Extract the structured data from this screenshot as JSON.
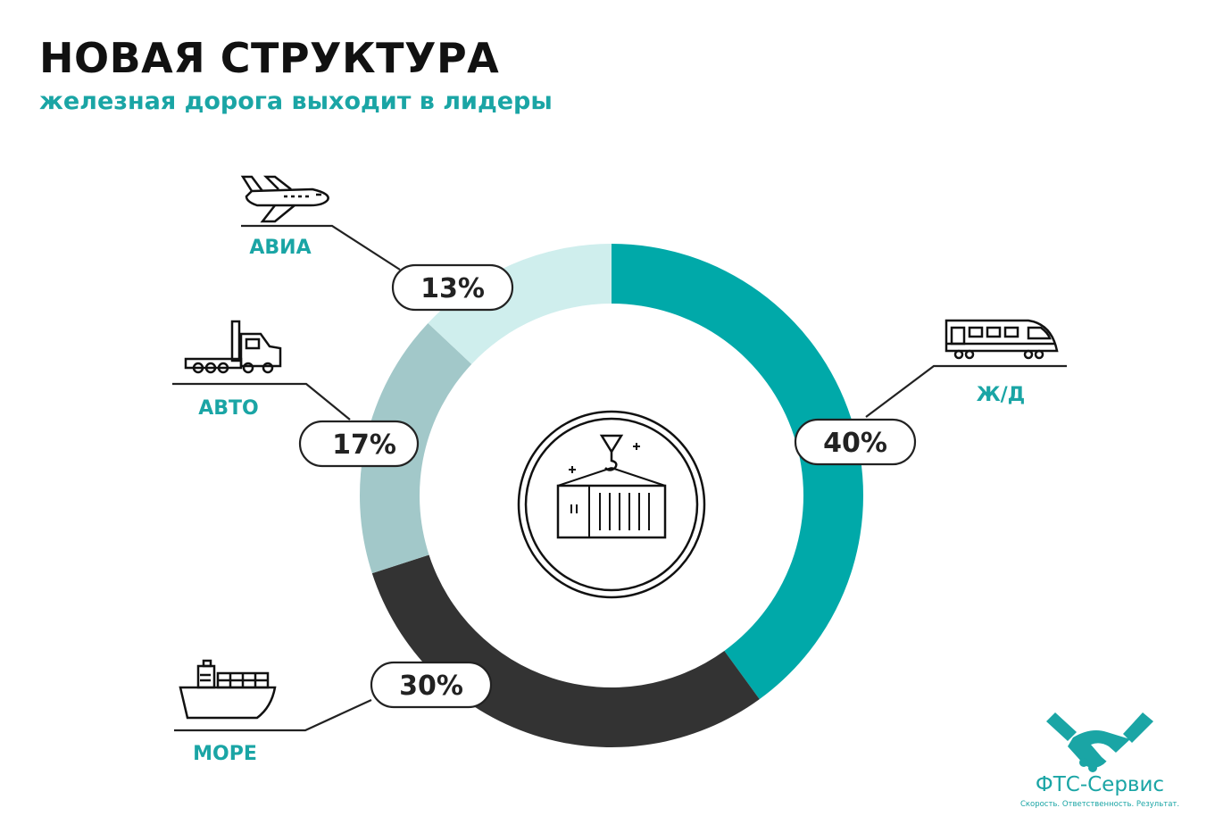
{
  "header": {
    "title": "НОВАЯ СТРУКТУРА",
    "subtitle": "железная дорога выходит в лидеры"
  },
  "brand": {
    "name": "ФТС-Сервис",
    "tagline": "Скорость. Ответственность. Результат."
  },
  "colors": {
    "accent": "#1aa5a5",
    "rail": "#00a9a9",
    "sea": "#333333",
    "auto": "#a2c8c9",
    "air": "#cfeeed",
    "text": "#222222"
  },
  "icons": {
    "air": "airplane-icon",
    "auto": "truck-icon",
    "sea": "ship-icon",
    "rail": "train-icon",
    "center": "container-crane-icon",
    "logo": "handshake-icon"
  },
  "chart_data": {
    "type": "pie",
    "categories": [
      "Ж/Д",
      "МОРЕ",
      "АВТО",
      "АВИА"
    ],
    "values": [
      40,
      30,
      17,
      13
    ],
    "value_labels": [
      "40%",
      "30%",
      "17%",
      "13%"
    ],
    "colors": [
      "#00a9a9",
      "#333333",
      "#a2c8c9",
      "#cfeeed"
    ],
    "start": "top, clockwise",
    "donut": true
  }
}
